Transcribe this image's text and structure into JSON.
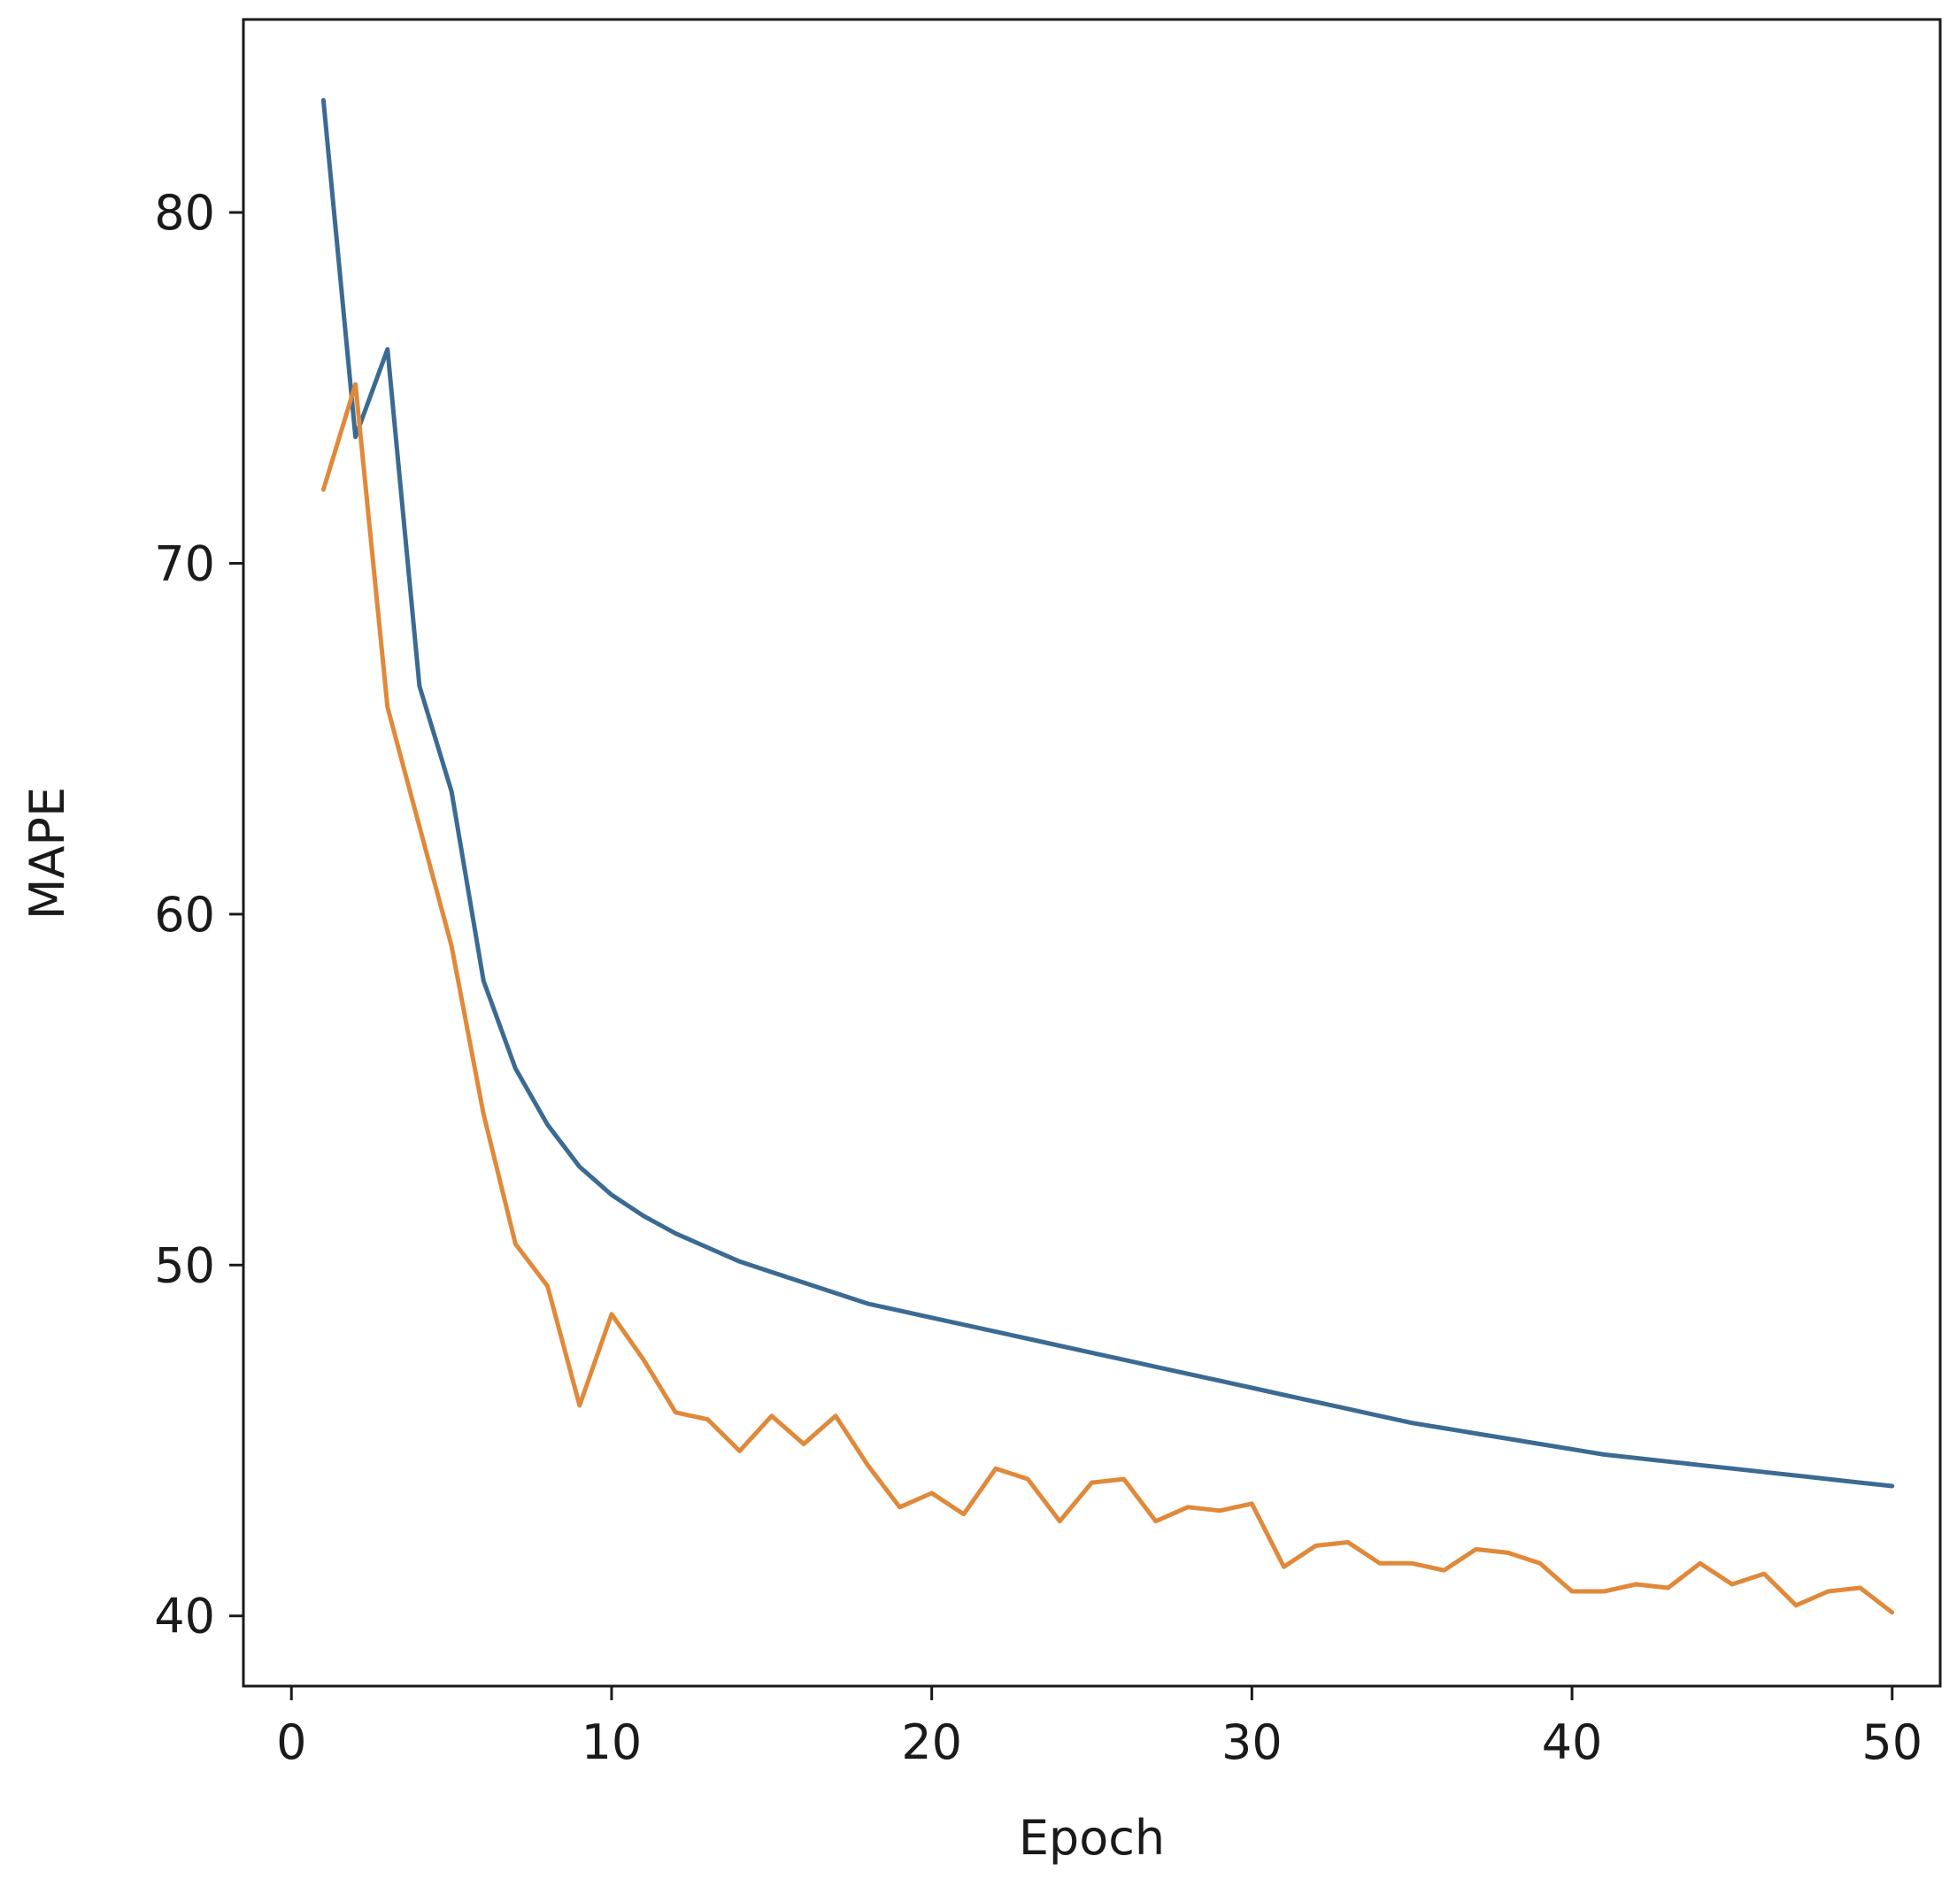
{
  "chart_data": {
    "type": "line",
    "title": "",
    "xlabel": "Epoch",
    "ylabel": "MAPE",
    "xlim": [
      -1.5,
      51.5
    ],
    "ylim": [
      38.0,
      85.5
    ],
    "xticks": [
      0,
      10,
      20,
      30,
      40,
      50
    ],
    "yticks": [
      40,
      50,
      60,
      70,
      80
    ],
    "grid": false,
    "legend": "none",
    "x": [
      1,
      2,
      3,
      4,
      5,
      6,
      7,
      8,
      9,
      10,
      11,
      12,
      13,
      14,
      15,
      16,
      17,
      18,
      19,
      20,
      21,
      22,
      23,
      24,
      25,
      26,
      27,
      28,
      29,
      30,
      31,
      32,
      33,
      34,
      35,
      36,
      37,
      38,
      39,
      40,
      41,
      42,
      43,
      44,
      45,
      46,
      47,
      48,
      49,
      50
    ],
    "series": [
      {
        "color": "#3b6a92",
        "values": [
          83.2,
          73.6,
          76.1,
          66.5,
          63.5,
          58.1,
          55.6,
          54.0,
          52.8,
          52.0,
          51.4,
          50.9,
          50.5,
          50.1,
          49.8,
          49.5,
          49.2,
          48.9,
          48.7,
          48.5,
          48.3,
          48.1,
          47.9,
          47.7,
          47.5,
          47.3,
          47.1,
          46.9,
          46.7,
          46.5,
          46.3,
          46.1,
          45.9,
          45.7,
          45.5,
          45.35,
          45.2,
          45.05,
          44.9,
          44.75,
          44.6,
          44.5,
          44.4,
          44.3,
          44.2,
          44.1,
          44.0,
          43.9,
          43.8,
          43.7
        ]
      },
      {
        "color": "#e0893a",
        "values": [
          72.1,
          75.1,
          65.9,
          62.5,
          59.1,
          54.3,
          50.6,
          49.4,
          46.0,
          48.6,
          47.3,
          45.8,
          45.6,
          44.7,
          45.7,
          44.9,
          45.7,
          44.3,
          43.1,
          43.5,
          42.9,
          44.2,
          43.9,
          42.7,
          43.8,
          43.9,
          42.7,
          43.1,
          43.0,
          43.2,
          41.4,
          42.0,
          42.1,
          41.5,
          41.5,
          41.3,
          41.9,
          41.8,
          41.5,
          40.7,
          40.7,
          40.9,
          40.8,
          41.5,
          40.9,
          41.2,
          40.3,
          40.7,
          40.8,
          40.1
        ]
      }
    ]
  }
}
